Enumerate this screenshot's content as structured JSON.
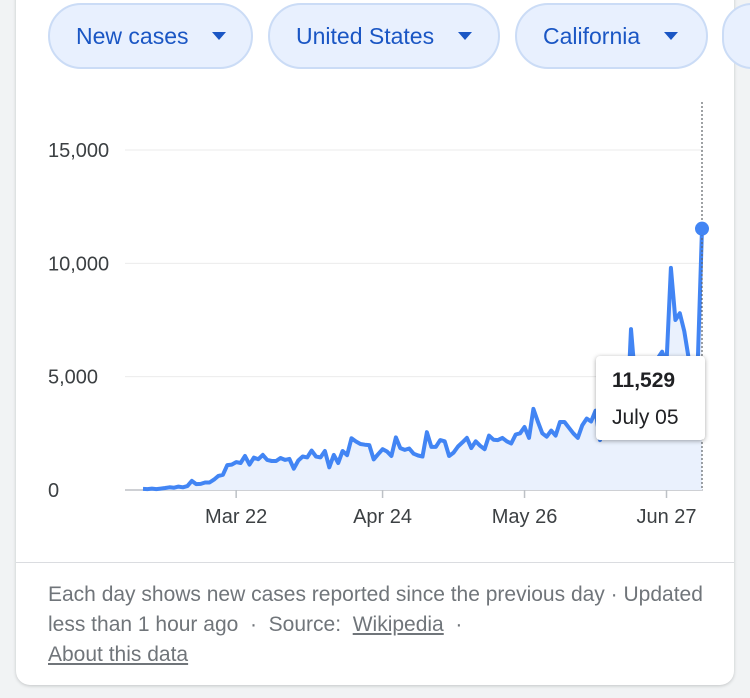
{
  "filters": {
    "metric": "New cases",
    "country": "United States",
    "region": "California"
  },
  "tooltip": {
    "value": "11,529",
    "date": "July 05"
  },
  "footer": {
    "description": "Each day shows new cases reported since the previous day",
    "sep1": "·",
    "updated": "Updated less than 1 hour ago",
    "sep2": "·",
    "source_label": "Source:",
    "source_link": "Wikipedia",
    "sep3": "·",
    "about_link": "About this data"
  },
  "colors": {
    "line": "#4285f4",
    "area": "#eaf1fd",
    "chip_bg": "#e8f0fe",
    "chip_text": "#1a56c4"
  },
  "chart_data": {
    "type": "area",
    "y_ticks": [
      0,
      5000,
      10000,
      15000
    ],
    "y_tick_labels": [
      "0",
      "5,000",
      "10,000",
      "15,000"
    ],
    "x_tick_labels": [
      "Mar 22",
      "Apr 24",
      "May 26",
      "Jun 27"
    ],
    "x_tick_dates": [
      "2020-03-22",
      "2020-04-24",
      "2020-05-26",
      "2020-06-27"
    ],
    "ylim": [
      0,
      15000
    ],
    "grid": true,
    "x": [
      "2020-03-01",
      "2020-03-02",
      "2020-03-03",
      "2020-03-04",
      "2020-03-05",
      "2020-03-06",
      "2020-03-07",
      "2020-03-08",
      "2020-03-09",
      "2020-03-10",
      "2020-03-11",
      "2020-03-12",
      "2020-03-13",
      "2020-03-14",
      "2020-03-15",
      "2020-03-16",
      "2020-03-17",
      "2020-03-18",
      "2020-03-19",
      "2020-03-20",
      "2020-03-21",
      "2020-03-22",
      "2020-03-23",
      "2020-03-24",
      "2020-03-25",
      "2020-03-26",
      "2020-03-27",
      "2020-03-28",
      "2020-03-29",
      "2020-03-30",
      "2020-03-31",
      "2020-04-01",
      "2020-04-02",
      "2020-04-03",
      "2020-04-04",
      "2020-04-05",
      "2020-04-06",
      "2020-04-07",
      "2020-04-08",
      "2020-04-09",
      "2020-04-10",
      "2020-04-11",
      "2020-04-12",
      "2020-04-13",
      "2020-04-14",
      "2020-04-15",
      "2020-04-16",
      "2020-04-17",
      "2020-04-18",
      "2020-04-19",
      "2020-04-20",
      "2020-04-21",
      "2020-04-22",
      "2020-04-23",
      "2020-04-24",
      "2020-04-25",
      "2020-04-26",
      "2020-04-27",
      "2020-04-28",
      "2020-04-29",
      "2020-04-30",
      "2020-05-01",
      "2020-05-02",
      "2020-05-03",
      "2020-05-04",
      "2020-05-05",
      "2020-05-06",
      "2020-05-07",
      "2020-05-08",
      "2020-05-09",
      "2020-05-10",
      "2020-05-11",
      "2020-05-12",
      "2020-05-13",
      "2020-05-14",
      "2020-05-15",
      "2020-05-16",
      "2020-05-17",
      "2020-05-18",
      "2020-05-19",
      "2020-05-20",
      "2020-05-21",
      "2020-05-22",
      "2020-05-23",
      "2020-05-24",
      "2020-05-25",
      "2020-05-26",
      "2020-05-27",
      "2020-05-28",
      "2020-05-29",
      "2020-05-30",
      "2020-05-31",
      "2020-06-01",
      "2020-06-02",
      "2020-06-03",
      "2020-06-04",
      "2020-06-05",
      "2020-06-06",
      "2020-06-07",
      "2020-06-08",
      "2020-06-09",
      "2020-06-10",
      "2020-06-11",
      "2020-06-12",
      "2020-06-13",
      "2020-06-14",
      "2020-06-15",
      "2020-06-16",
      "2020-06-17",
      "2020-06-18",
      "2020-06-19",
      "2020-06-20",
      "2020-06-21",
      "2020-06-22",
      "2020-06-23",
      "2020-06-24",
      "2020-06-25",
      "2020-06-26",
      "2020-06-27",
      "2020-06-28",
      "2020-06-29",
      "2020-06-30",
      "2020-07-01",
      "2020-07-02",
      "2020-07-03",
      "2020-07-04",
      "2020-07-05"
    ],
    "series": [
      {
        "values": [
          50,
          40,
          60,
          40,
          60,
          90,
          120,
          100,
          150,
          120,
          170,
          400,
          260,
          270,
          330,
          330,
          460,
          620,
          670,
          1100,
          1120,
          1230,
          1190,
          1500,
          1120,
          1430,
          1360,
          1550,
          1330,
          1280,
          1280,
          1410,
          1330,
          1370,
          940,
          1300,
          1480,
          1440,
          1740,
          1480,
          1440,
          1720,
          1000,
          1550,
          1190,
          1720,
          1540,
          2280,
          2140,
          2030,
          2000,
          1980,
          1350,
          1580,
          1800,
          1700,
          1500,
          2320,
          1850,
          1770,
          1830,
          1600,
          1520,
          1480,
          2550,
          1900,
          1900,
          2200,
          2150,
          1500,
          1650,
          1920,
          2100,
          2300,
          1850,
          2150,
          1950,
          1800,
          2400,
          2220,
          2200,
          2300,
          2150,
          2050,
          2450,
          2500,
          2780,
          2300,
          3580,
          3020,
          2500,
          2350,
          2620,
          2400,
          3000,
          3000,
          2750,
          2500,
          2300,
          2850,
          3150,
          3020,
          3500,
          2200,
          3600,
          2800,
          3000,
          3150,
          3200,
          2800,
          7100,
          4700,
          5800,
          5200,
          4200,
          3400,
          5800,
          6100,
          5600,
          9800,
          7500,
          7800,
          7000,
          5800,
          5700,
          5400,
          11529
        ]
      }
    ]
  }
}
